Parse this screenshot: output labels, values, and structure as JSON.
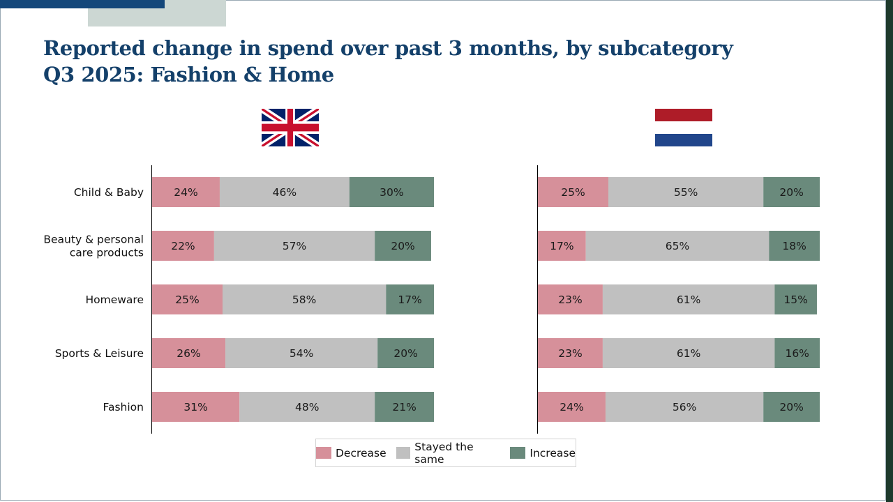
{
  "title": "Reported change in spend over past 3 months, by subcategory",
  "subtitle": {
    "period": "Q3 2025:",
    "section": "Fashion & Home"
  },
  "colors": {
    "decrease": "#d6909a",
    "same": "#c0c0c0",
    "increase": "#6a8a7c",
    "title": "#14406a",
    "accent_blue": "#14477a",
    "accent_grey": "#ccd7d3"
  },
  "icons": {
    "uk_flag": "uk-flag-icon",
    "nl_flag": "netherlands-flag-icon"
  },
  "legend": [
    {
      "key": "decrease",
      "label": "Decrease"
    },
    {
      "key": "same",
      "label": "Stayed the same"
    },
    {
      "key": "increase",
      "label": "Increase"
    }
  ],
  "chart_data": [
    {
      "type": "bar",
      "orientation": "horizontal-stacked-100",
      "country": "United Kingdom",
      "categories": [
        "Child & Baby",
        "Beauty & personal care products",
        "Homeware",
        "Sports & Leisure",
        "Fashion"
      ],
      "category_lines": [
        [
          "Child & Baby"
        ],
        [
          "Beauty & personal",
          "care products"
        ],
        [
          "Homeware"
        ],
        [
          "Sports & Leisure"
        ],
        [
          "Fashion"
        ]
      ],
      "series": [
        {
          "name": "Decrease",
          "key": "decrease",
          "values": [
            24,
            22,
            25,
            26,
            31
          ]
        },
        {
          "name": "Stayed the same",
          "key": "same",
          "values": [
            46,
            57,
            58,
            54,
            48
          ]
        },
        {
          "name": "Increase",
          "key": "increase",
          "values": [
            30,
            20,
            17,
            20,
            21
          ]
        }
      ],
      "xlim": [
        0,
        100
      ],
      "value_suffix": "%"
    },
    {
      "type": "bar",
      "orientation": "horizontal-stacked-100",
      "country": "Netherlands",
      "categories": [
        "Child & Baby",
        "Beauty & personal care products",
        "Homeware",
        "Sports & Leisure",
        "Fashion"
      ],
      "series": [
        {
          "name": "Decrease",
          "key": "decrease",
          "values": [
            25,
            17,
            23,
            23,
            24
          ]
        },
        {
          "name": "Stayed the same",
          "key": "same",
          "values": [
            55,
            65,
            61,
            61,
            56
          ]
        },
        {
          "name": "Increase",
          "key": "increase",
          "values": [
            20,
            18,
            15,
            16,
            20
          ]
        }
      ],
      "xlim": [
        0,
        100
      ],
      "value_suffix": "%"
    }
  ]
}
